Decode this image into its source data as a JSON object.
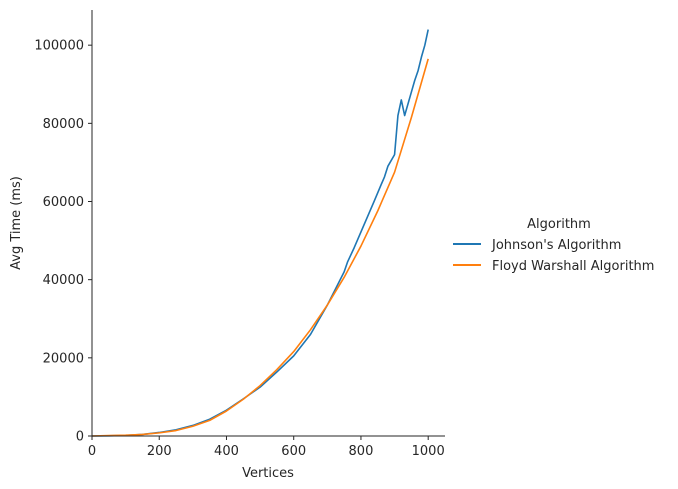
{
  "chart_data": {
    "type": "line",
    "xlabel": "Vertices",
    "ylabel": "Avg Time (ms)",
    "xlim": [
      0,
      1050
    ],
    "ylim": [
      0,
      109000
    ],
    "xticks": [
      0,
      200,
      400,
      600,
      800,
      1000
    ],
    "yticks": [
      0,
      20000,
      40000,
      60000,
      80000,
      100000
    ],
    "xtick_labels": [
      "0",
      "200",
      "400",
      "600",
      "800",
      "1000"
    ],
    "ytick_labels": [
      "0",
      "20000",
      "40000",
      "60000",
      "80000",
      "100000"
    ],
    "grid": false,
    "legend": {
      "title": "Algorithm",
      "placement": "right"
    },
    "series": [
      {
        "name": "Johnson's Algorithm",
        "color": "#1f77b4",
        "x": [
          0,
          50,
          100,
          150,
          200,
          250,
          300,
          350,
          400,
          450,
          500,
          550,
          600,
          650,
          700,
          750,
          760,
          780,
          800,
          820,
          840,
          860,
          870,
          880,
          900,
          910,
          920,
          930,
          950,
          960,
          970,
          980,
          990,
          1000
        ],
        "y": [
          0,
          50,
          150,
          400,
          900,
          1600,
          2700,
          4300,
          6600,
          9500,
          12500,
          16400,
          20500,
          26000,
          33500,
          42000,
          44500,
          48200,
          52200,
          56200,
          60200,
          64300,
          66300,
          69000,
          72000,
          82000,
          86000,
          82000,
          88000,
          91000,
          93500,
          97000,
          100000,
          104000
        ]
      },
      {
        "name": "Floyd Warshall Algorithm",
        "color": "#ff7f0e",
        "x": [
          0,
          50,
          100,
          150,
          200,
          250,
          300,
          350,
          400,
          450,
          500,
          550,
          600,
          650,
          700,
          750,
          800,
          850,
          900,
          950,
          1000
        ],
        "y": [
          0,
          100,
          200,
          400,
          800,
          1400,
          2500,
          4000,
          6400,
          9400,
          12900,
          17000,
          21600,
          27200,
          33500,
          40600,
          48600,
          57600,
          67500,
          81500,
          96500
        ]
      }
    ]
  }
}
